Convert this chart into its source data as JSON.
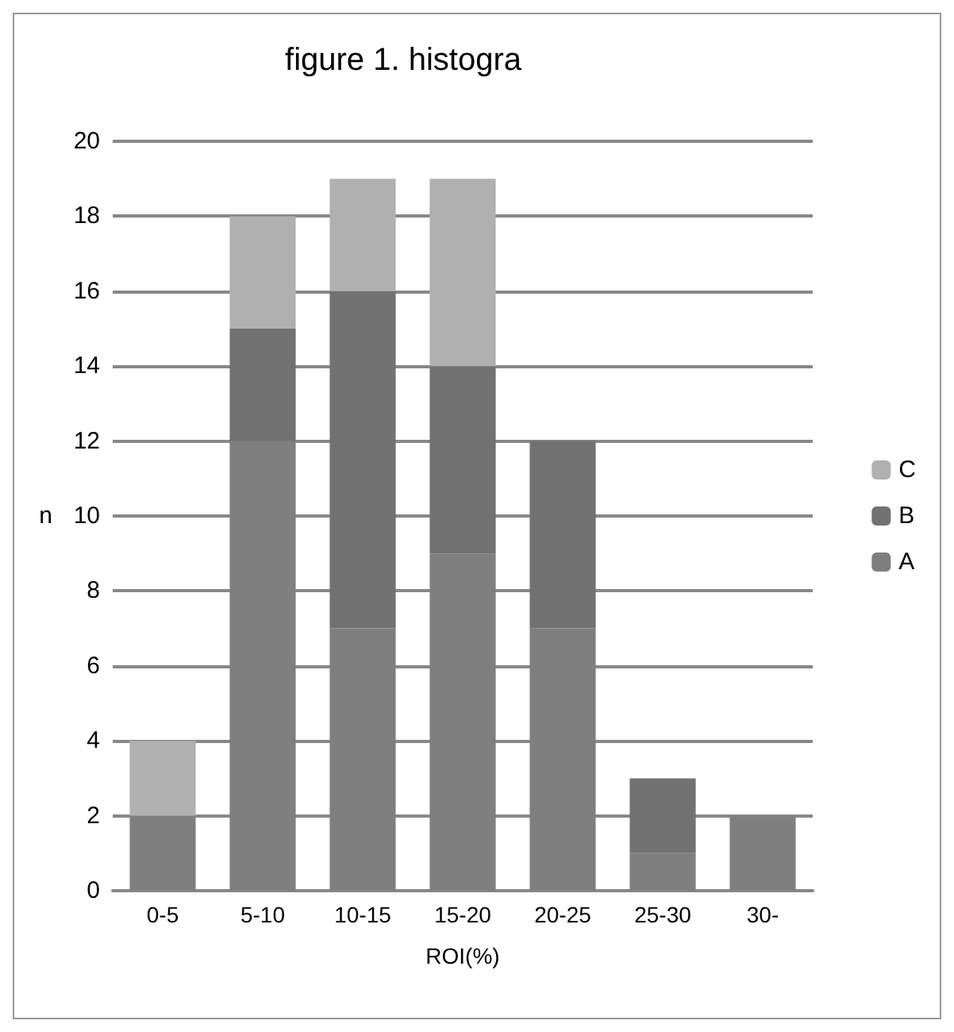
{
  "chart_data": {
    "type": "bar",
    "title": "figure 1. histogra",
    "xlabel": "ROI(%)",
    "ylabel": "n",
    "stacked": true,
    "categories": [
      "0-5",
      "5-10",
      "10-15",
      "15-20",
      "20-25",
      "25-30",
      "30-"
    ],
    "series": [
      {
        "name": "A",
        "color": "#7f7f7f",
        "values": [
          2,
          12,
          7,
          9,
          7,
          1,
          2
        ]
      },
      {
        "name": "B",
        "color": "#727272",
        "values": [
          0,
          3,
          9,
          5,
          5,
          2,
          0
        ]
      },
      {
        "name": "C",
        "color": "#b0b0b0",
        "values": [
          2,
          3,
          3,
          5,
          0,
          0,
          0
        ]
      }
    ],
    "ylim": [
      0,
      20
    ],
    "yticks": [
      0,
      2,
      4,
      6,
      8,
      10,
      12,
      14,
      16,
      18,
      20
    ],
    "grid": "y",
    "legend": "right"
  }
}
